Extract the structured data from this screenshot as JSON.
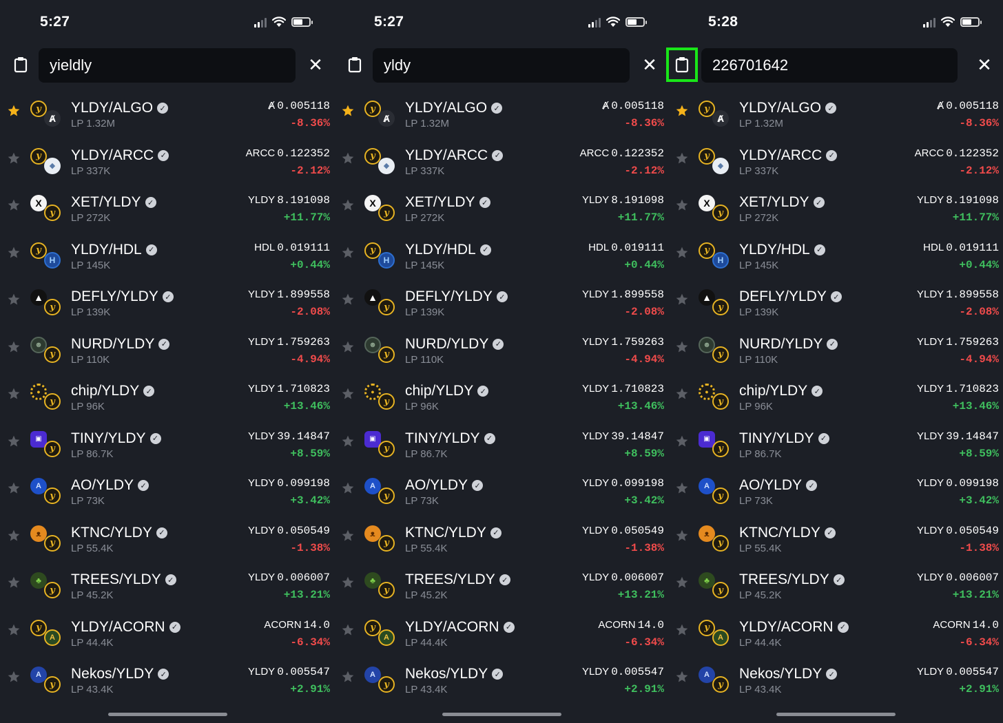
{
  "colors": {
    "background": "#1c1f26",
    "search_bg": "#0d0f13",
    "negative": "#f04b4b",
    "positive": "#3fbf5e",
    "star_active": "#f5b21a",
    "star_inactive": "#5c5f66",
    "highlight": "#19e619"
  },
  "panels": [
    {
      "time": "5:27",
      "query": "yieldly",
      "paste_highlighted": false
    },
    {
      "time": "5:27",
      "query": "yldy",
      "paste_highlighted": false
    },
    {
      "time": "5:28",
      "query": "226701642",
      "paste_highlighted": true
    }
  ],
  "icons": {
    "paste": "clipboard-icon",
    "clear": "close-icon",
    "favorite": "star-icon",
    "verified": "verified-check-icon"
  },
  "pairs": [
    {
      "name": "YLDY/ALGO",
      "lp": "LP 1.32M",
      "unit": "Ⱥ",
      "price": "0.005118",
      "change": "-8.36%",
      "direction": "neg",
      "favorite": true,
      "tokA": "yldy",
      "tokB": "algo",
      "glyphA": "y",
      "glyphB": "Ⱥ"
    },
    {
      "name": "YLDY/ARCC",
      "lp": "LP 337K",
      "unit": "ARCC",
      "price": "0.122352",
      "change": "-2.12%",
      "direction": "neg",
      "favorite": false,
      "tokA": "yldy",
      "tokB": "arcc",
      "glyphA": "y",
      "glyphB": "◆"
    },
    {
      "name": "XET/YLDY",
      "lp": "LP 272K",
      "unit": "YLDY",
      "price": "8.191098",
      "change": "+11.77%",
      "direction": "pos",
      "favorite": false,
      "tokA": "xet",
      "tokB": "yldy",
      "glyphA": "X",
      "glyphB": "y"
    },
    {
      "name": "YLDY/HDL",
      "lp": "LP 145K",
      "unit": "HDL",
      "price": "0.019111",
      "change": "+0.44%",
      "direction": "pos",
      "favorite": false,
      "tokA": "yldy",
      "tokB": "hdl",
      "glyphA": "y",
      "glyphB": "H"
    },
    {
      "name": "DEFLY/YLDY",
      "lp": "LP 139K",
      "unit": "YLDY",
      "price": "1.899558",
      "change": "-2.08%",
      "direction": "neg",
      "favorite": false,
      "tokA": "defly",
      "tokB": "yldy",
      "glyphA": "▲",
      "glyphB": "y"
    },
    {
      "name": "NURD/YLDY",
      "lp": "LP 110K",
      "unit": "YLDY",
      "price": "1.759263",
      "change": "-4.94%",
      "direction": "neg",
      "favorite": false,
      "tokA": "nurd",
      "tokB": "yldy",
      "glyphA": "☻",
      "glyphB": "y"
    },
    {
      "name": "chip/YLDY",
      "lp": "LP 96K",
      "unit": "YLDY",
      "price": "1.710823",
      "change": "+13.46%",
      "direction": "pos",
      "favorite": false,
      "tokA": "chip",
      "tokB": "yldy",
      "glyphA": "●",
      "glyphB": "y"
    },
    {
      "name": "TINY/YLDY",
      "lp": "LP 86.7K",
      "unit": "YLDY",
      "price": "39.14847",
      "change": "+8.59%",
      "direction": "pos",
      "favorite": false,
      "tokA": "tiny",
      "tokB": "yldy",
      "glyphA": "▣",
      "glyphB": "y"
    },
    {
      "name": "AO/YLDY",
      "lp": "LP 73K",
      "unit": "YLDY",
      "price": "0.099198",
      "change": "+3.42%",
      "direction": "pos",
      "favorite": false,
      "tokA": "ao",
      "tokB": "yldy",
      "glyphA": "A",
      "glyphB": "y"
    },
    {
      "name": "KTNC/YLDY",
      "lp": "LP 55.4K",
      "unit": "YLDY",
      "price": "0.050549",
      "change": "-1.38%",
      "direction": "neg",
      "favorite": false,
      "tokA": "ktnc",
      "tokB": "yldy",
      "glyphA": "ᴥ",
      "glyphB": "y"
    },
    {
      "name": "TREES/YLDY",
      "lp": "LP 45.2K",
      "unit": "YLDY",
      "price": "0.006007",
      "change": "+13.21%",
      "direction": "pos",
      "favorite": false,
      "tokA": "trees",
      "tokB": "yldy",
      "glyphA": "♣",
      "glyphB": "y"
    },
    {
      "name": "YLDY/ACORN",
      "lp": "LP 44.4K",
      "unit": "ACORN",
      "price": "14.0",
      "change": "-6.34%",
      "direction": "neg",
      "favorite": false,
      "tokA": "yldy",
      "tokB": "acorn",
      "glyphA": "y",
      "glyphB": "A"
    },
    {
      "name": "Nekos/YLDY",
      "lp": "LP 43.4K",
      "unit": "YLDY",
      "price": "0.005547",
      "change": "+2.91%",
      "direction": "pos",
      "favorite": false,
      "tokA": "nekos",
      "tokB": "yldy",
      "glyphA": "A",
      "glyphB": "y"
    }
  ]
}
